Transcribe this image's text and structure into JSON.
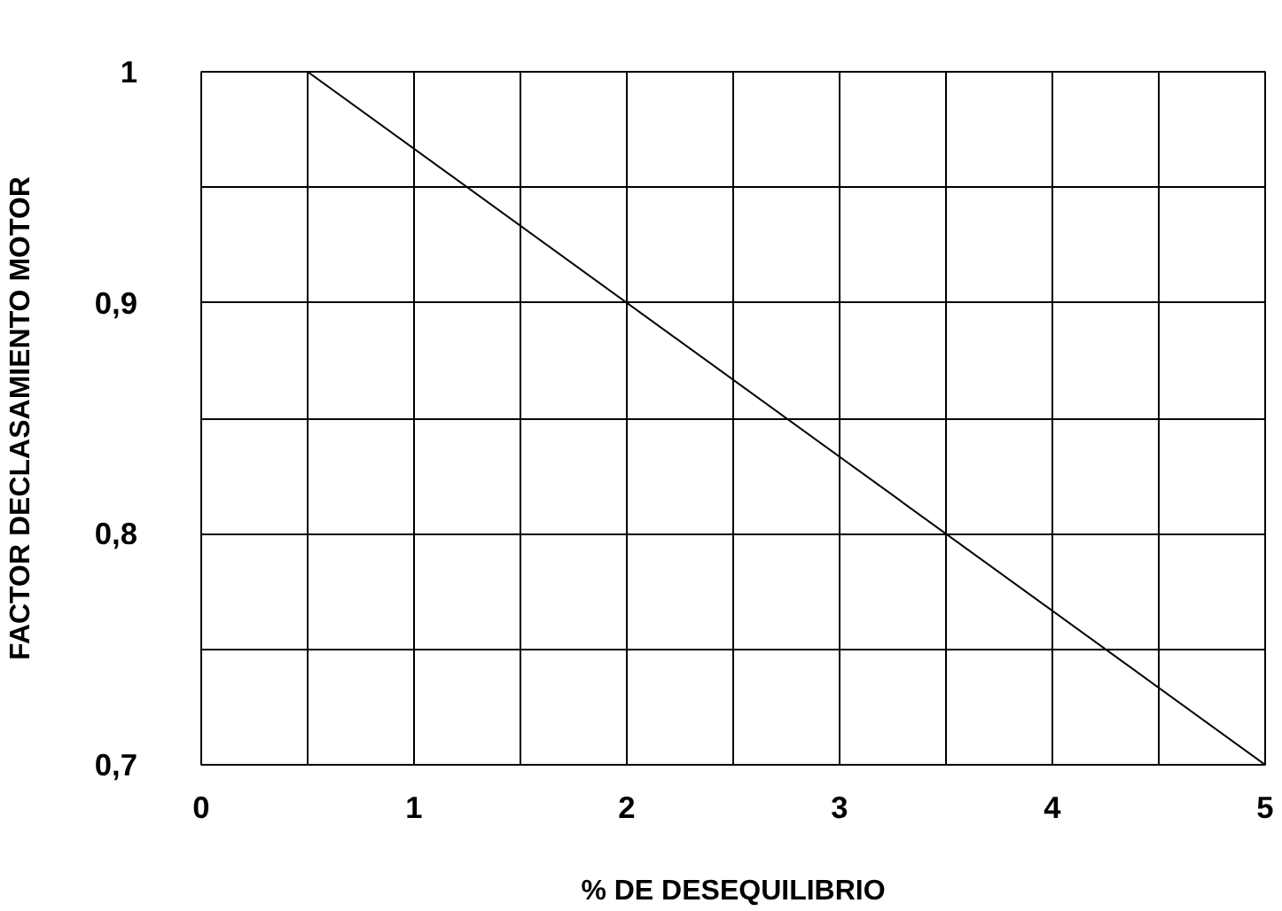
{
  "chart_data": {
    "type": "line",
    "xlabel": "% DE DESEQUILIBRIO",
    "ylabel": "FACTOR DECLASAMIENTO MOTOR",
    "x": [
      0.5,
      5
    ],
    "series": [
      {
        "color": "#000000",
        "values": [
          1,
          0.7
        ]
      }
    ],
    "xlim": [
      0,
      5
    ],
    "ylim": [
      0.7,
      1
    ],
    "xticks": [
      0,
      {
        "value": 0.5,
        "label": null
      },
      1,
      {
        "value": 1.5,
        "label": null
      },
      2,
      {
        "value": 2.5,
        "label": null
      },
      3,
      {
        "value": 3.5,
        "label": null
      },
      4,
      {
        "value": 4.5,
        "label": null
      },
      5
    ],
    "yticks": [
      {
        "value": 0.7,
        "label": "0,7"
      },
      {
        "value": 0.75,
        "label": null
      },
      {
        "value": 0.8,
        "label": "0,8"
      },
      {
        "value": 0.85,
        "label": null
      },
      {
        "value": 0.9,
        "label": "0,9"
      },
      {
        "value": 0.95,
        "label": null
      },
      1
    ],
    "grid": true,
    "marker": "none",
    "line_style": "solid"
  }
}
